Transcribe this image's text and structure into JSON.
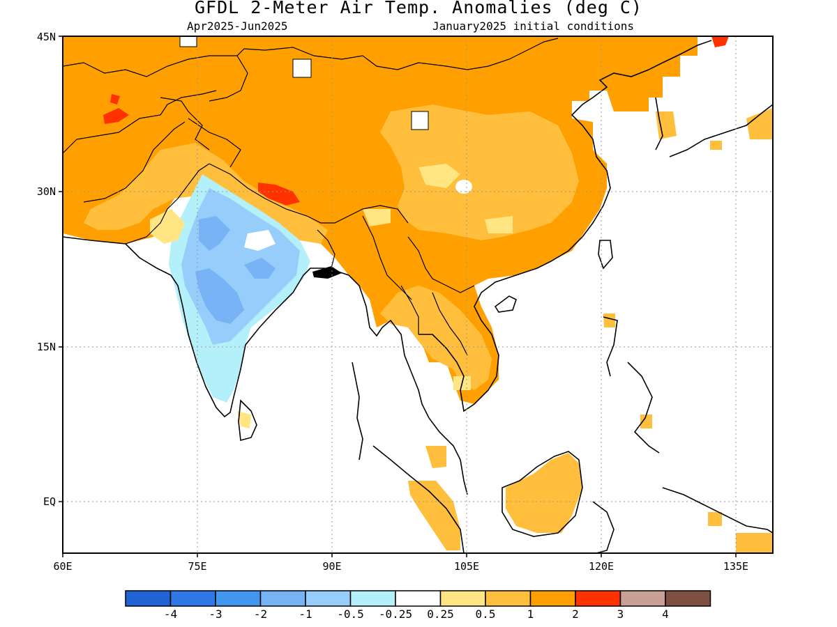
{
  "title": "GFDL 2-Meter Air Temp. Anomalies (deg C)",
  "subtitle_left": "Apr2025-Jun2025",
  "subtitle_right": "January2025 initial conditions",
  "lat_labels": [
    "45N",
    "30N",
    "15N",
    "EQ"
  ],
  "lon_labels": [
    "60E",
    "75E",
    "90E",
    "105E",
    "120E",
    "135E"
  ],
  "colorbar": {
    "colors": [
      "#1f64d2",
      "#2d78e6",
      "#4196f0",
      "#78b4f5",
      "#96cdfa",
      "#b4f0fa",
      "#ffffff",
      "#ffe682",
      "#ffbe3c",
      "#ffa000",
      "#ff3200",
      "#c8a096",
      "#7d5041"
    ],
    "labels": [
      "-4",
      "-3",
      "-2",
      "-1",
      "-0.5",
      "-0.25",
      "0.25",
      "0.5",
      "1",
      "2",
      "3",
      "4"
    ]
  },
  "map_colors": {
    "ocean": "#ffffff",
    "coast": "#000000",
    "anom_1_2": "#ffa000",
    "anom_05_1": "#ffbe3c",
    "anom_025_05": "#ffe682",
    "anom_m05_m025": "#b4f0fa",
    "anom_m1_m05": "#96cdfa",
    "anom_m2_m1": "#78b4f5",
    "anom_2_3": "#ff3200"
  }
}
